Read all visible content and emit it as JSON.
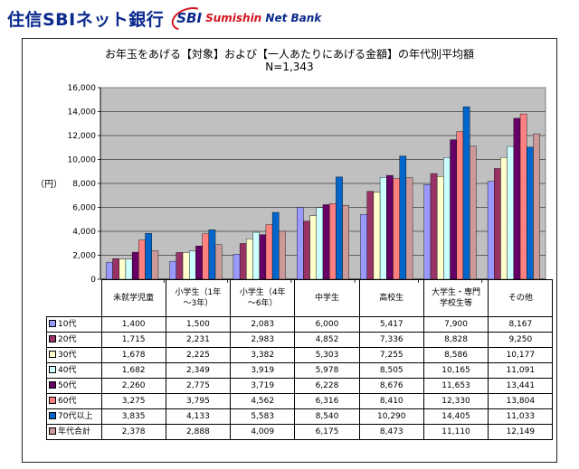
{
  "brand": {
    "name_jp": "住信SBIネット銀行",
    "logo_sbi": "SBI",
    "logo_text": "Sumishin",
    "logo_text2": "Net Bank"
  },
  "chart_data": {
    "type": "bar",
    "title": "お年玉をあげる【対象】および【一人あたりにあげる金額】の年代別平均額",
    "subtitle": "N=1,343",
    "ylabel": "（円）",
    "ylim": [
      0,
      16000
    ],
    "yticks": [
      "16,000",
      "14,000",
      "12,000",
      "10,000",
      "8,000",
      "6,000",
      "4,000",
      "2,000",
      "0"
    ],
    "grid": true,
    "legend": "table-left",
    "categories": [
      "未就学児童",
      "小学生（1年\n～3年）",
      "小学生（4年\n～6年）",
      "中学生",
      "高校生",
      "大学生・専門\n学校生等",
      "その他"
    ],
    "series": [
      {
        "name": "10代",
        "color": "#9999ff",
        "values": [
          1400,
          1500,
          2083,
          6000,
          5417,
          7900,
          8167
        ],
        "labels": [
          "1,400",
          "1,500",
          "2,083",
          "6,000",
          "5,417",
          "7,900",
          "8,167"
        ]
      },
      {
        "name": "20代",
        "color": "#993366",
        "values": [
          1715,
          2231,
          2983,
          4852,
          7336,
          8828,
          9250
        ],
        "labels": [
          "1,715",
          "2,231",
          "2,983",
          "4,852",
          "7,336",
          "8,828",
          "9,250"
        ]
      },
      {
        "name": "30代",
        "color": "#ffffcc",
        "values": [
          1678,
          2225,
          3382,
          5303,
          7255,
          8586,
          10177
        ],
        "labels": [
          "1,678",
          "2,225",
          "3,382",
          "5,303",
          "7,255",
          "8,586",
          "10,177"
        ]
      },
      {
        "name": "40代",
        "color": "#ccffff",
        "values": [
          1682,
          2349,
          3919,
          5978,
          8505,
          10165,
          11091
        ],
        "labels": [
          "1,682",
          "2,349",
          "3,919",
          "5,978",
          "8,505",
          "10,165",
          "11,091"
        ]
      },
      {
        "name": "50代",
        "color": "#660066",
        "values": [
          2260,
          2775,
          3719,
          6228,
          8676,
          11653,
          13441
        ],
        "labels": [
          "2,260",
          "2,775",
          "3,719",
          "6,228",
          "8,676",
          "11,653",
          "13,441"
        ]
      },
      {
        "name": "60代",
        "color": "#ff8080",
        "values": [
          3275,
          3795,
          4562,
          6316,
          8410,
          12330,
          13804
        ],
        "labels": [
          "3,275",
          "3,795",
          "4,562",
          "6,316",
          "8,410",
          "12,330",
          "13,804"
        ]
      },
      {
        "name": "70代以上",
        "color": "#0066cc",
        "values": [
          3835,
          4133,
          5583,
          8540,
          10290,
          14405,
          11033
        ],
        "labels": [
          "3,835",
          "4,133",
          "5,583",
          "8,540",
          "10,290",
          "14,405",
          "11,033"
        ]
      },
      {
        "name": "年代合計",
        "color": "#cc9999",
        "values": [
          2378,
          2888,
          4009,
          6175,
          8473,
          11110,
          12149
        ],
        "labels": [
          "2,378",
          "2,888",
          "4,009",
          "6,175",
          "8,473",
          "11,110",
          "12,149"
        ]
      }
    ]
  }
}
